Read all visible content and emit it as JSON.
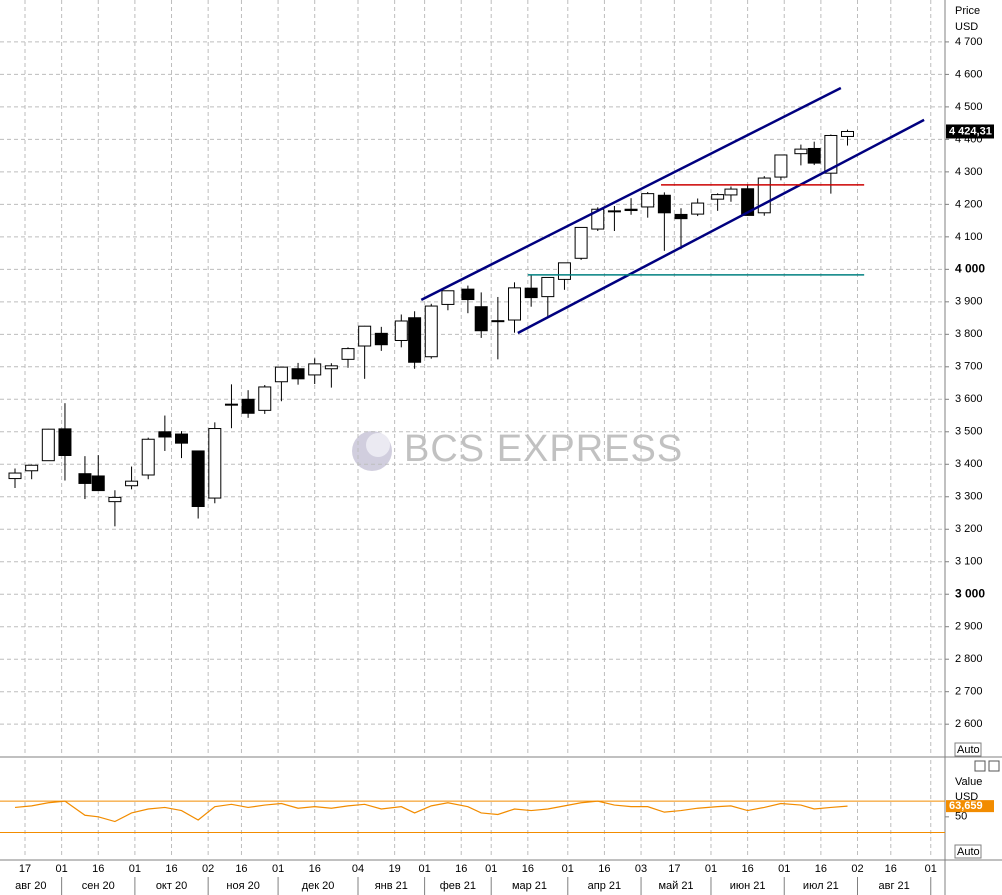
{
  "chart_data": {
    "type": "candlestick",
    "price_label": "Price",
    "currency_label": "USD",
    "scale_mode": "Auto",
    "watermark": "BCS EXPRESS",
    "x": [
      "2020-08-10",
      "2020-08-17",
      "2020-08-24",
      "2020-08-31",
      "2020-09-08",
      "2020-09-14",
      "2020-09-21",
      "2020-09-28",
      "2020-10-05",
      "2020-10-12",
      "2020-10-19",
      "2020-10-26",
      "2020-11-02",
      "2020-11-09",
      "2020-11-16",
      "2020-11-23",
      "2020-11-30",
      "2020-12-07",
      "2020-12-14",
      "2020-12-21",
      "2020-12-28",
      "2021-01-04",
      "2021-01-11",
      "2021-01-19",
      "2021-01-25",
      "2021-02-01",
      "2021-02-08",
      "2021-02-16",
      "2021-02-22",
      "2021-03-01",
      "2021-03-08",
      "2021-03-15",
      "2021-03-22",
      "2021-03-29",
      "2021-04-05",
      "2021-04-12",
      "2021-04-19",
      "2021-04-26",
      "2021-05-03",
      "2021-05-10",
      "2021-05-17",
      "2021-05-24",
      "2021-06-01",
      "2021-06-07",
      "2021-06-14",
      "2021-06-21",
      "2021-06-28",
      "2021-07-06",
      "2021-07-12",
      "2021-07-19",
      "2021-07-26"
    ],
    "open": [
      3356,
      3380,
      3411,
      3509,
      3371,
      3364,
      3285,
      3334,
      3367,
      3500,
      3493,
      3441,
      3296,
      3583,
      3600,
      3566,
      3654,
      3694,
      3675,
      3694,
      3723,
      3764,
      3803,
      3781,
      3851,
      3731,
      3892,
      3939,
      3885,
      3842,
      3844,
      3942,
      3916,
      3969,
      4034,
      4124,
      4179,
      4185,
      4192,
      4228,
      4169,
      4170,
      4216,
      4229,
      4248,
      4174,
      4284,
      4356,
      4372,
      4296,
      4409
    ],
    "high": [
      3387,
      3399,
      3509,
      3588,
      3425,
      3428,
      3320,
      3393,
      3482,
      3550,
      3502,
      3441,
      3529,
      3646,
      3628,
      3644,
      3699,
      3712,
      3726,
      3711,
      3760,
      3826,
      3823,
      3861,
      3871,
      3894,
      3935,
      3950,
      3929,
      3915,
      3960,
      3983,
      3955,
      4020,
      4130,
      4191,
      4195,
      4219,
      4238,
      4237,
      4188,
      4218,
      4234,
      4255,
      4262,
      4287,
      4353,
      4384,
      4393,
      4415,
      4430
    ],
    "low": [
      3327,
      3354,
      3410,
      3350,
      3293,
      3330,
      3209,
      3323,
      3354,
      3441,
      3419,
      3233,
      3280,
      3511,
      3543,
      3555,
      3594,
      3645,
      3647,
      3636,
      3697,
      3663,
      3749,
      3760,
      3694,
      3725,
      3874,
      3865,
      3789,
      3723,
      3805,
      3885,
      3853,
      3937,
      4029,
      4118,
      4118,
      4168,
      4159,
      4057,
      4062,
      4164,
      4180,
      4208,
      4165,
      4165,
      4274,
      4320,
      4321,
      4233,
      4381
    ],
    "close": [
      3373,
      3397,
      3508,
      3427,
      3341,
      3319,
      3298,
      3348,
      3477,
      3484,
      3465,
      3270,
      3510,
      3585,
      3557,
      3638,
      3699,
      3663,
      3709,
      3703,
      3756,
      3825,
      3768,
      3841,
      3714,
      3887,
      3934,
      3907,
      3811,
      3842,
      3943,
      3913,
      3975,
      4020,
      4129,
      4185,
      4180,
      4181,
      4233,
      4174,
      4156,
      4204,
      4230,
      4247,
      4166,
      4281,
      4352,
      4370,
      4327,
      4412,
      4424.31
    ],
    "up_color": "#ffffff",
    "down_color": "#000000",
    "last_price": {
      "value": 4424.31,
      "label": "4 424,31"
    },
    "ylim": [
      2499,
      4829
    ],
    "yticks": [
      {
        "value": 2600,
        "label": "2 600"
      },
      {
        "value": 2700,
        "label": "2 700"
      },
      {
        "value": 2800,
        "label": "2 800"
      },
      {
        "value": 2900,
        "label": "2 900"
      },
      {
        "value": 3000,
        "label": "3 000",
        "bold": true
      },
      {
        "value": 3100,
        "label": "3 100"
      },
      {
        "value": 3200,
        "label": "3 200"
      },
      {
        "value": 3300,
        "label": "3 300"
      },
      {
        "value": 3400,
        "label": "3 400"
      },
      {
        "value": 3500,
        "label": "3 500"
      },
      {
        "value": 3600,
        "label": "3 600"
      },
      {
        "value": 3700,
        "label": "3 700"
      },
      {
        "value": 3800,
        "label": "3 800"
      },
      {
        "value": 3900,
        "label": "3 900"
      },
      {
        "value": 4000,
        "label": "4 000",
        "bold": true
      },
      {
        "value": 4100,
        "label": "4 100"
      },
      {
        "value": 4200,
        "label": "4 200"
      },
      {
        "value": 4300,
        "label": "4 300"
      },
      {
        "value": 4400,
        "label": "4 400"
      },
      {
        "value": 4500,
        "label": "4 500"
      },
      {
        "value": 4600,
        "label": "4 600"
      },
      {
        "value": 4700,
        "label": "4 700"
      }
    ],
    "xticks": [
      {
        "value": "2020-08-17",
        "label": "17"
      },
      {
        "value": "2020-09-01",
        "label": "01"
      },
      {
        "value": "2020-09-16",
        "label": "16"
      },
      {
        "value": "2020-10-01",
        "label": "01"
      },
      {
        "value": "2020-10-16",
        "label": "16"
      },
      {
        "value": "2020-11-02",
        "label": "02"
      },
      {
        "value": "2020-11-16",
        "label": "16"
      },
      {
        "value": "2020-12-01",
        "label": "01"
      },
      {
        "value": "2020-12-16",
        "label": "16"
      },
      {
        "value": "2021-01-04",
        "label": "04"
      },
      {
        "value": "2021-01-19",
        "label": "19"
      },
      {
        "value": "2021-02-01",
        "label": "01"
      },
      {
        "value": "2021-02-16",
        "label": "16"
      },
      {
        "value": "2021-03-01",
        "label": "01"
      },
      {
        "value": "2021-03-16",
        "label": "16"
      },
      {
        "value": "2021-04-01",
        "label": "01"
      },
      {
        "value": "2021-04-16",
        "label": "16"
      },
      {
        "value": "2021-05-03",
        "label": "03"
      },
      {
        "value": "2021-05-17",
        "label": "17"
      },
      {
        "value": "2021-06-01",
        "label": "01"
      },
      {
        "value": "2021-06-16",
        "label": "16"
      },
      {
        "value": "2021-07-01",
        "label": "01"
      },
      {
        "value": "2021-07-16",
        "label": "16"
      },
      {
        "value": "2021-08-02",
        "label": "02"
      },
      {
        "value": "2021-08-16",
        "label": "16"
      },
      {
        "value": "2021-09-01",
        "label": "01"
      }
    ],
    "month_ticks": [
      {
        "value": "2020-08-03",
        "label": "авг 20"
      },
      {
        "value": "2020-09-01",
        "label": "сен 20"
      },
      {
        "value": "2020-10-01",
        "label": "окт 20"
      },
      {
        "value": "2020-11-02",
        "label": "ноя 20"
      },
      {
        "value": "2020-12-01",
        "label": "дек 20"
      },
      {
        "value": "2021-01-04",
        "label": "янв 21"
      },
      {
        "value": "2021-02-01",
        "label": "фев 21"
      },
      {
        "value": "2021-03-01",
        "label": "мар 21"
      },
      {
        "value": "2021-04-01",
        "label": "апр 21"
      },
      {
        "value": "2021-05-03",
        "label": "май 21"
      },
      {
        "value": "2021-06-01",
        "label": "июн 21"
      },
      {
        "value": "2021-07-01",
        "label": "июл 21"
      },
      {
        "value": "2021-08-02",
        "label": "авг 21"
      },
      {
        "value": "2021-09-01"
      }
    ],
    "grid": true,
    "drawings": [
      {
        "color": "#00007f",
        "x": [
          "2021-01-29",
          "2021-07-26"
        ],
        "y": [
          3906,
          4558
        ]
      },
      {
        "color": "#00007f",
        "x": [
          "2021-03-11",
          "2021-08-30"
        ],
        "y": [
          3804,
          4460
        ]
      },
      {
        "color": "#cc0000",
        "x": [
          "2021-05-11",
          "2021-08-04"
        ],
        "y": [
          4260,
          4260
        ]
      },
      {
        "color": "#008080",
        "x": [
          "2021-03-16",
          "2021-08-04"
        ],
        "y": [
          3983,
          3983
        ]
      }
    ],
    "indicator": {
      "type": "line",
      "label": "Value",
      "unit": "USD",
      "scale_mode": "Auto",
      "color": "#f28c00",
      "values": [
        62,
        64,
        68,
        70,
        52,
        50,
        44,
        55,
        60,
        62,
        58,
        46,
        63,
        66,
        62,
        65,
        67,
        61,
        63,
        61,
        64,
        66,
        60,
        63,
        55,
        64,
        68,
        63,
        55,
        53,
        60,
        58,
        60,
        64,
        68,
        70,
        65,
        63,
        63,
        56,
        58,
        61,
        63,
        64,
        58,
        62,
        67,
        65,
        60,
        62,
        63.659
      ],
      "last_value": {
        "value": 63.659,
        "label": "63,659"
      },
      "levels": [
        30,
        70
      ],
      "ylim": [
        -2.5,
        122.5
      ],
      "yticks": [
        50
      ]
    }
  }
}
